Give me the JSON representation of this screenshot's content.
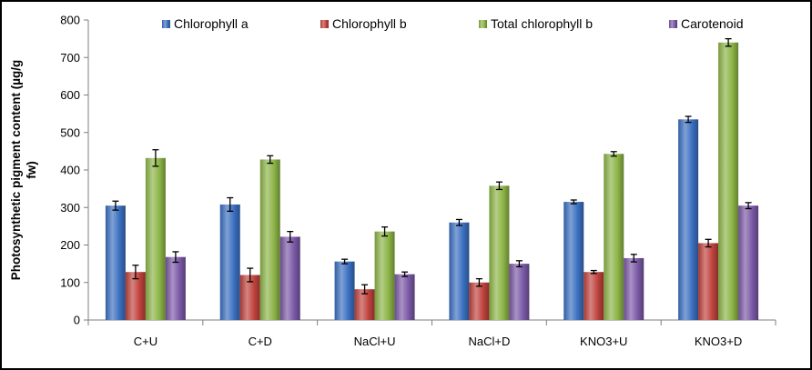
{
  "chart_data": {
    "type": "bar",
    "ylabel": [
      "Photosynthetic pigment content (µg/g",
      "fw)"
    ],
    "ylim": [
      0,
      800
    ],
    "yticks": [
      0,
      100,
      200,
      300,
      400,
      500,
      600,
      700,
      800
    ],
    "legend_position": "top",
    "grid": false,
    "categories": [
      "C+U",
      "C+D",
      "NaCl+U",
      "NaCl+D",
      "KNO3+U",
      "KNO3+D"
    ],
    "series": [
      {
        "name": "Chlorophyll a",
        "color": "#3a6fc0",
        "values": [
          305,
          308,
          156,
          260,
          315,
          535
        ],
        "errors": [
          12,
          18,
          6,
          8,
          5,
          8
        ]
      },
      {
        "name": "Chlorophyll b",
        "color": "#c0423c",
        "values": [
          128,
          120,
          82,
          100,
          128,
          205
        ],
        "errors": [
          18,
          18,
          12,
          10,
          4,
          10
        ]
      },
      {
        "name": "Total chlorophyll b",
        "color": "#8cb446",
        "values": [
          432,
          428,
          236,
          358,
          443,
          740
        ],
        "errors": [
          22,
          10,
          12,
          10,
          6,
          10
        ]
      },
      {
        "name": "Carotenoid",
        "color": "#7a58a6",
        "values": [
          168,
          222,
          122,
          150,
          165,
          305
        ],
        "errors": [
          14,
          14,
          6,
          8,
          10,
          8
        ]
      }
    ]
  }
}
